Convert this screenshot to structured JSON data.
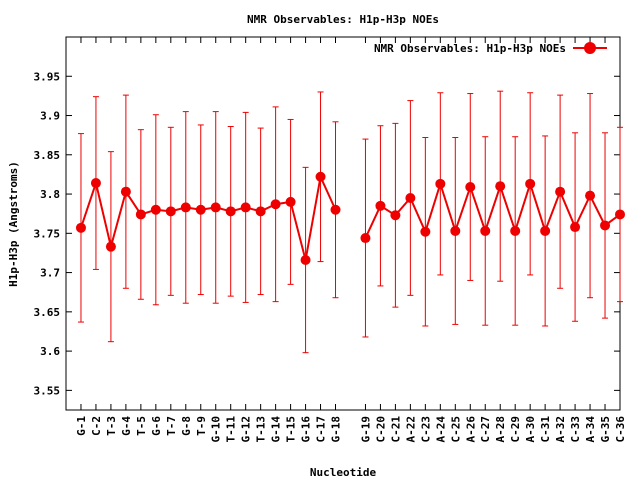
{
  "chart_data": {
    "type": "line",
    "title": "NMR Observables: H1p-H3p NOEs",
    "xlabel": "Nucleotide",
    "ylabel": "H1p-H3p (Angstroms)",
    "ylim": [
      3.525,
      4.0
    ],
    "yticks": [
      3.55,
      3.6,
      3.65,
      3.7,
      3.75,
      3.8,
      3.85,
      3.9,
      3.95
    ],
    "ytick_labels": [
      "3.55",
      "3.6",
      "3.65",
      "3.7",
      "3.75",
      "3.8",
      "3.85",
      "3.9",
      "3.95"
    ],
    "xlim": [
      0,
      37
    ],
    "grid": false,
    "legend_position": "top-right",
    "color": "#ee0000",
    "categories": [
      "G-1",
      "C-2",
      "T-3",
      "G-4",
      "T-5",
      "G-6",
      "T-7",
      "G-8",
      "T-9",
      "G-10",
      "T-11",
      "G-12",
      "T-13",
      "G-14",
      "T-15",
      "G-16",
      "C-17",
      "G-18",
      "G-19",
      "C-20",
      "C-21",
      "A-22",
      "C-23",
      "A-24",
      "C-25",
      "A-26",
      "C-27",
      "A-28",
      "C-29",
      "A-30",
      "C-31",
      "A-32",
      "C-33",
      "A-34",
      "G-35",
      "C-36"
    ],
    "x": [
      1,
      2,
      3,
      4,
      5,
      6,
      7,
      8,
      9,
      10,
      11,
      12,
      13,
      14,
      15,
      16,
      17,
      18,
      20,
      21,
      22,
      23,
      24,
      25,
      26,
      27,
      28,
      29,
      30,
      31,
      32,
      33,
      34,
      35,
      36,
      37
    ],
    "segments": [
      [
        0,
        17
      ],
      [
        18,
        35
      ]
    ],
    "series": [
      {
        "name": "NMR Observables: H1p-H3p NOEs",
        "values": [
          3.757,
          3.814,
          3.733,
          3.803,
          3.774,
          3.78,
          3.778,
          3.783,
          3.78,
          3.783,
          3.778,
          3.783,
          3.778,
          3.787,
          3.79,
          3.716,
          3.822,
          3.78,
          3.744,
          3.785,
          3.773,
          3.795,
          3.752,
          3.813,
          3.753,
          3.809,
          3.753,
          3.81,
          3.753,
          3.813,
          3.753,
          3.803,
          3.758,
          3.798,
          3.76,
          3.774
        ],
        "errors": [
          0.12,
          0.11,
          0.121,
          0.123,
          0.108,
          0.121,
          0.107,
          0.122,
          0.108,
          0.122,
          0.108,
          0.121,
          0.106,
          0.124,
          0.105,
          0.118,
          0.108,
          0.112,
          0.126,
          0.102,
          0.117,
          0.124,
          0.12,
          0.116,
          0.119,
          0.119,
          0.12,
          0.121,
          0.12,
          0.116,
          0.121,
          0.123,
          0.12,
          0.13,
          0.118,
          0.111
        ]
      }
    ]
  }
}
